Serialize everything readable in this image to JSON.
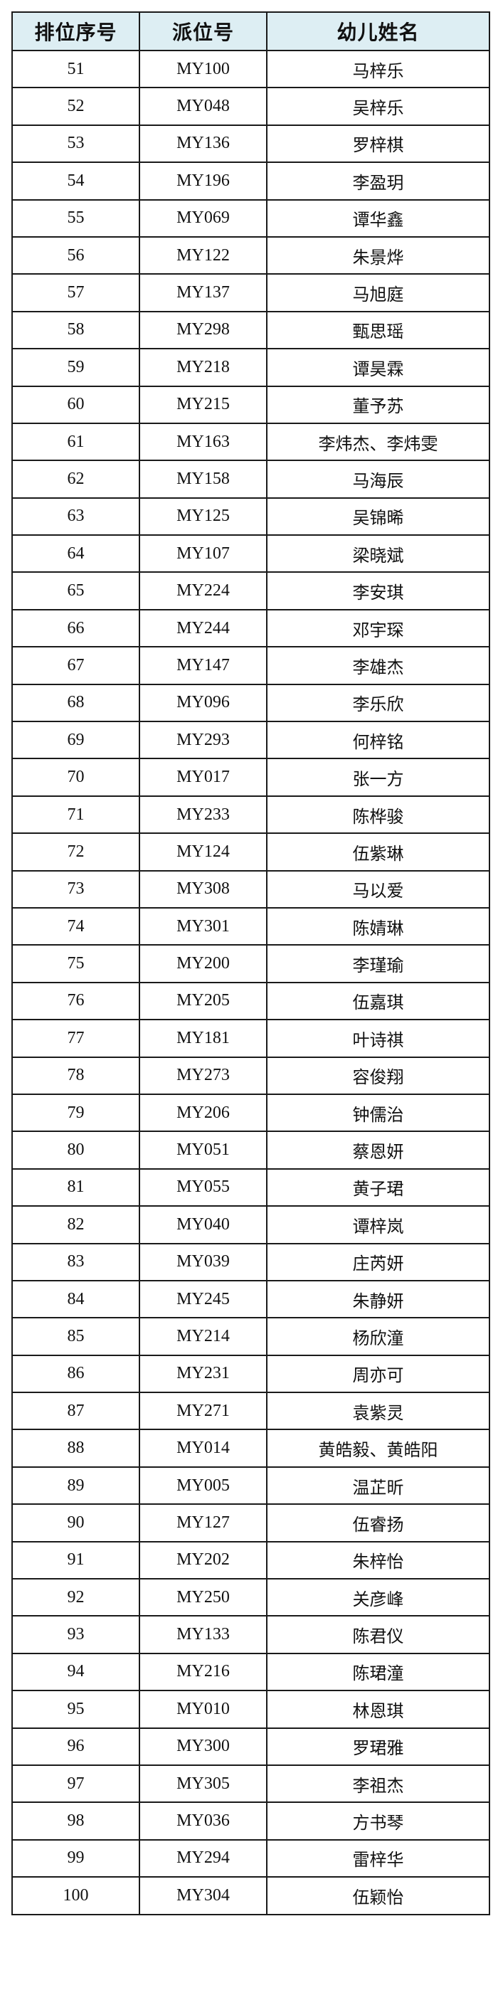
{
  "table": {
    "headers": [
      "排位序号",
      "派位号",
      "幼儿姓名"
    ],
    "rows": [
      [
        "51",
        "MY100",
        "马梓乐"
      ],
      [
        "52",
        "MY048",
        "吴梓乐"
      ],
      [
        "53",
        "MY136",
        "罗梓棋"
      ],
      [
        "54",
        "MY196",
        "李盈玥"
      ],
      [
        "55",
        "MY069",
        "谭华鑫"
      ],
      [
        "56",
        "MY122",
        "朱景烨"
      ],
      [
        "57",
        "MY137",
        "马旭庭"
      ],
      [
        "58",
        "MY298",
        "甄思瑶"
      ],
      [
        "59",
        "MY218",
        "谭昊霖"
      ],
      [
        "60",
        "MY215",
        "董予苏"
      ],
      [
        "61",
        "MY163",
        "李炜杰、李炜雯"
      ],
      [
        "62",
        "MY158",
        "马海辰"
      ],
      [
        "63",
        "MY125",
        "吴锦晞"
      ],
      [
        "64",
        "MY107",
        "梁晓斌"
      ],
      [
        "65",
        "MY224",
        "李安琪"
      ],
      [
        "66",
        "MY244",
        "邓宇琛"
      ],
      [
        "67",
        "MY147",
        "李雄杰"
      ],
      [
        "68",
        "MY096",
        "李乐欣"
      ],
      [
        "69",
        "MY293",
        "何梓铭"
      ],
      [
        "70",
        "MY017",
        "张一方"
      ],
      [
        "71",
        "MY233",
        "陈桦骏"
      ],
      [
        "72",
        "MY124",
        "伍紫琳"
      ],
      [
        "73",
        "MY308",
        "马以爱"
      ],
      [
        "74",
        "MY301",
        "陈婧琳"
      ],
      [
        "75",
        "MY200",
        "李瑾瑜"
      ],
      [
        "76",
        "MY205",
        "伍嘉琪"
      ],
      [
        "77",
        "MY181",
        "叶诗祺"
      ],
      [
        "78",
        "MY273",
        "容俊翔"
      ],
      [
        "79",
        "MY206",
        "钟儒治"
      ],
      [
        "80",
        "MY051",
        "蔡恩妍"
      ],
      [
        "81",
        "MY055",
        "黄子珺"
      ],
      [
        "82",
        "MY040",
        "谭梓岚"
      ],
      [
        "83",
        "MY039",
        "庄芮妍"
      ],
      [
        "84",
        "MY245",
        "朱静妍"
      ],
      [
        "85",
        "MY214",
        "杨欣潼"
      ],
      [
        "86",
        "MY231",
        "周亦可"
      ],
      [
        "87",
        "MY271",
        "袁紫灵"
      ],
      [
        "88",
        "MY014",
        "黄皓毅、黄皓阳"
      ],
      [
        "89",
        "MY005",
        "温芷昕"
      ],
      [
        "90",
        "MY127",
        "伍睿扬"
      ],
      [
        "91",
        "MY202",
        "朱梓怡"
      ],
      [
        "92",
        "MY250",
        "关彦峰"
      ],
      [
        "93",
        "MY133",
        "陈君仪"
      ],
      [
        "94",
        "MY216",
        "陈珺潼"
      ],
      [
        "95",
        "MY010",
        "林恩琪"
      ],
      [
        "96",
        "MY300",
        "罗珺雅"
      ],
      [
        "97",
        "MY305",
        "李祖杰"
      ],
      [
        "98",
        "MY036",
        "方书琴"
      ],
      [
        "99",
        "MY294",
        "雷梓华"
      ],
      [
        "100",
        "MY304",
        "伍颖怡"
      ]
    ]
  },
  "colors": {
    "header_bg": "#ddeef3",
    "border": "#1a1a1a"
  }
}
